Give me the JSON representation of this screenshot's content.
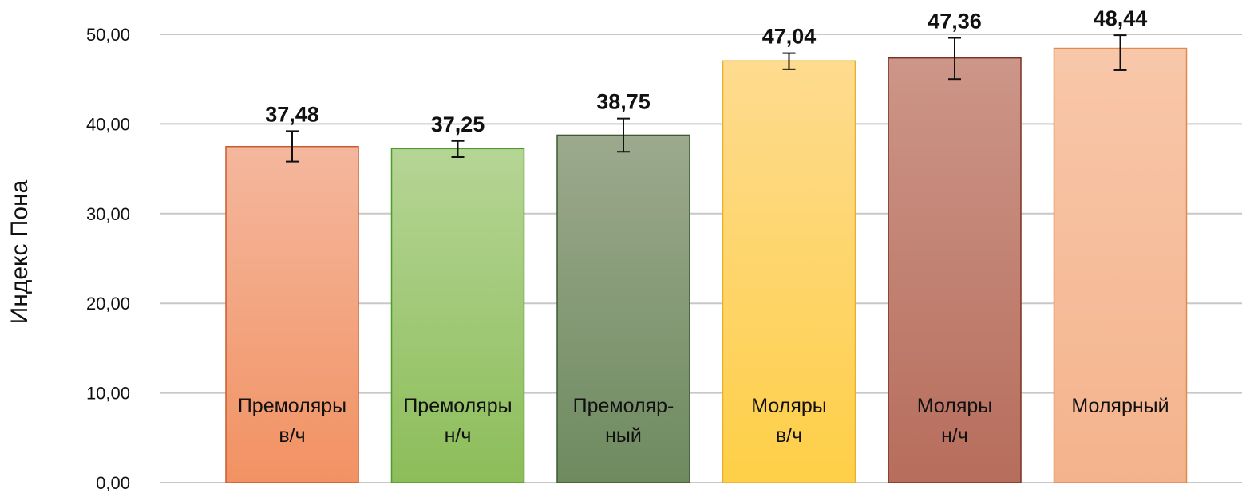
{
  "chart_data": {
    "type": "bar",
    "title": "",
    "xlabel": "",
    "ylabel": "Индекс Пона",
    "ylim": [
      0,
      50
    ],
    "yticks": [
      "0,00",
      "10,00",
      "20,00",
      "30,00",
      "40,00",
      "50,00"
    ],
    "grid": true,
    "legend": "none",
    "categories": [
      [
        "Премоляры",
        "в/ч"
      ],
      [
        "Премоляры",
        "н/ч"
      ],
      [
        "Премоляр-",
        "ный"
      ],
      [
        "Моляры",
        "в/ч"
      ],
      [
        "Моляры",
        "н/ч"
      ],
      [
        "Молярный"
      ]
    ],
    "values": [
      37.48,
      37.25,
      38.75,
      47.04,
      47.36,
      48.44
    ],
    "value_labels": [
      "37,48",
      "37,25",
      "38,75",
      "47,04",
      "47,36",
      "48,44"
    ],
    "error_low": [
      35.8,
      36.3,
      36.9,
      46.1,
      45.0,
      46.0
    ],
    "error_high": [
      39.2,
      38.1,
      40.6,
      47.9,
      49.6,
      49.9
    ],
    "colors": [
      {
        "top": "#f4b79d",
        "bottom": "#f29263",
        "edge": "#c85a2e"
      },
      {
        "top": "#b5d595",
        "bottom": "#8cbd59",
        "edge": "#4f9a2e"
      },
      {
        "top": "#9ca98d",
        "bottom": "#6e8a5f",
        "edge": "#3d5b30"
      },
      {
        "top": "#fedb8f",
        "bottom": "#fecf47",
        "edge": "#e6b12a"
      },
      {
        "top": "#cc9688",
        "bottom": "#b76d5c",
        "edge": "#7a3322"
      },
      {
        "top": "#f8c7a9",
        "bottom": "#f4b38c",
        "edge": "#e08a4d"
      }
    ]
  }
}
